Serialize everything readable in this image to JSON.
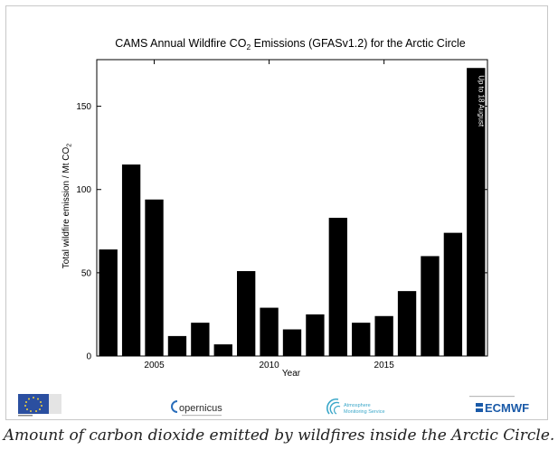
{
  "chart_data": {
    "type": "bar",
    "title": "CAMS Annual Wildfire CO",
    "title_sub": "2",
    "title_rest": " Emissions  (GFASv1.2) for the Arctic Circle",
    "xlabel": "Year",
    "ylabel": "Total wildfire emission / Mt CO",
    "ylabel_sub": "2",
    "x": [
      2003,
      2004,
      2005,
      2006,
      2007,
      2008,
      2009,
      2010,
      2011,
      2012,
      2013,
      2014,
      2015,
      2016,
      2017,
      2018,
      2019
    ],
    "values": [
      64,
      115,
      94,
      12,
      20,
      7,
      51,
      29,
      16,
      25,
      83,
      20,
      24,
      39,
      60,
      74,
      173
    ],
    "xticks": [
      2005,
      2010,
      2015
    ],
    "yticks": [
      0,
      50,
      100,
      150
    ],
    "xlim": [
      2002.5,
      2019.5
    ],
    "ylim": [
      0,
      178
    ],
    "bar_color": "#000000",
    "annotation": "Up to 18 August",
    "annotation_x": 2019,
    "grid": false
  },
  "logos": {
    "copernicus": "opernicus",
    "atmosphere_line1": "Atmosphere",
    "atmosphere_line2": "Monitoring Service",
    "ecmwf": "ECMWF"
  },
  "caption": "Amount of carbon dioxide emitted by wildfires inside the Arctic Circle."
}
